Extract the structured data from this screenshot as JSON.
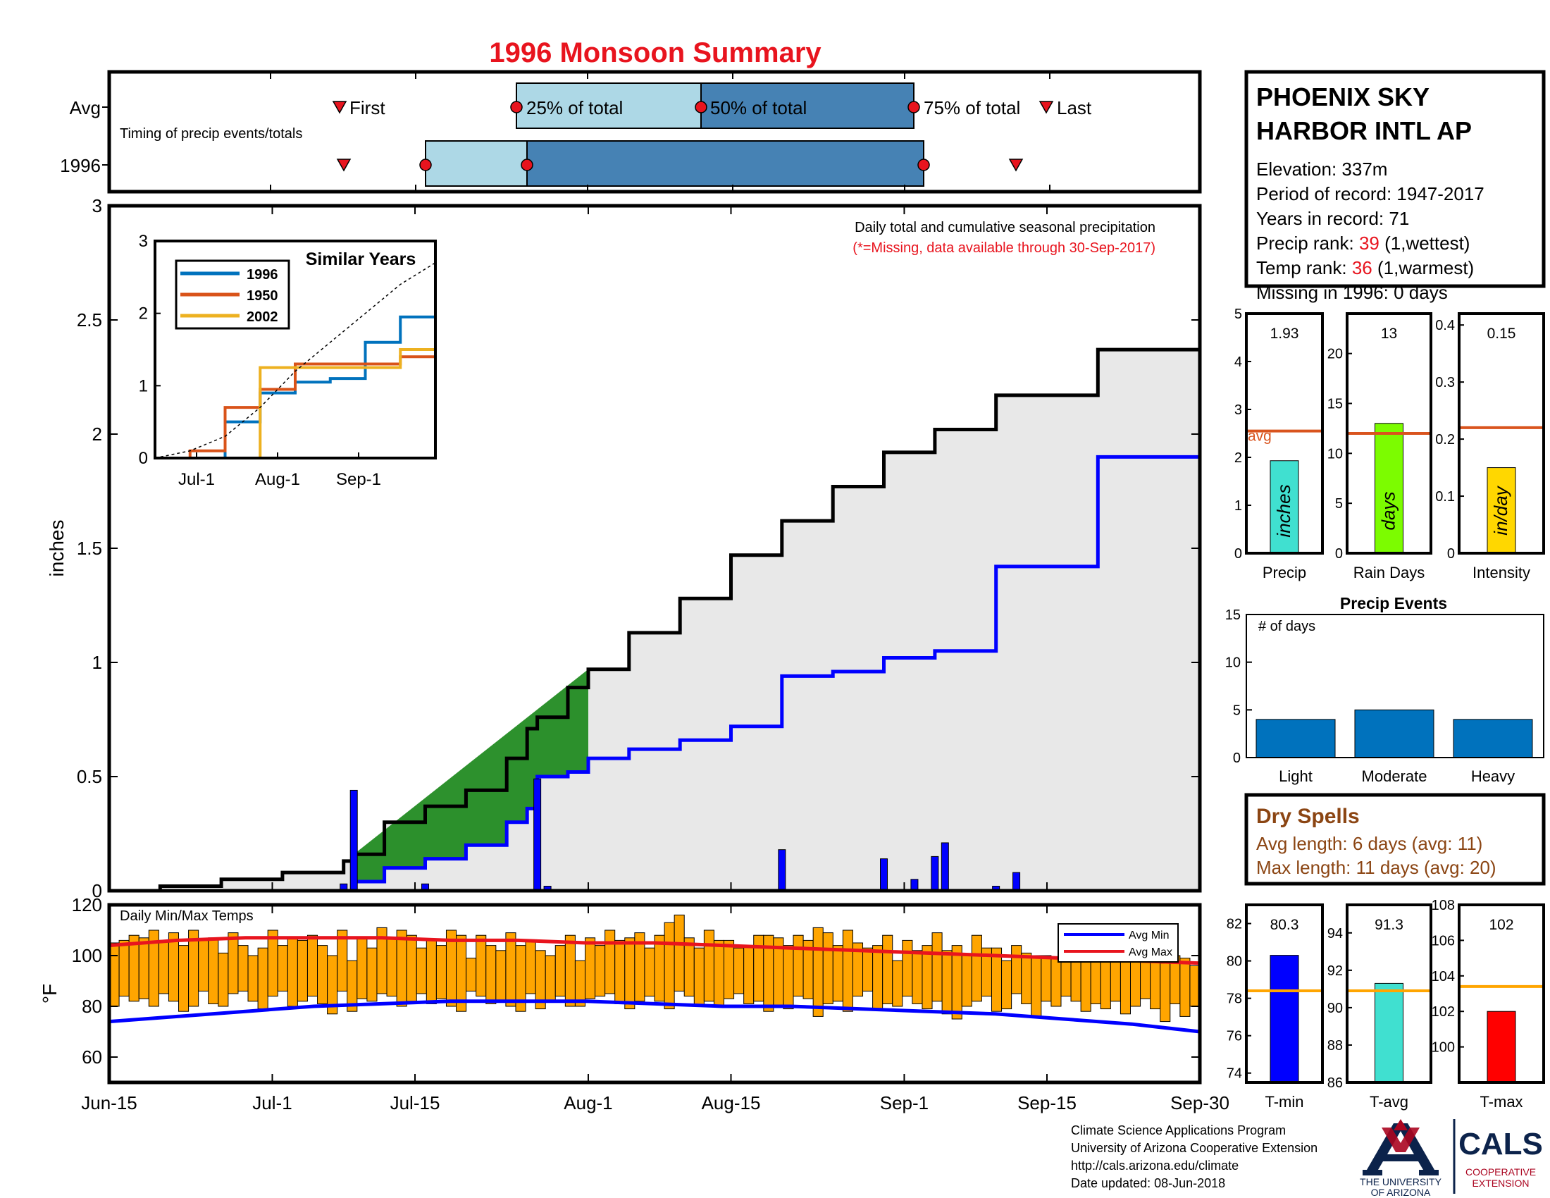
{
  "title": "1996 Monsoon Summary",
  "station": {
    "name_line1": "PHOENIX SKY",
    "name_line2": "HARBOR INTL AP",
    "elevation": "Elevation: 337m",
    "period": "Period of record: 1947-2017",
    "years": "Years in record: 71",
    "precip_rank_label": "Precip rank: ",
    "precip_rank_value": "39",
    "precip_rank_suffix": " (1,wettest)",
    "temp_rank_label": "Temp rank: ",
    "temp_rank_value": "36",
    "temp_rank_suffix": " (1,warmest)",
    "missing": "Missing in 1996: 0 days"
  },
  "timing": {
    "label": "Timing of precip events/totals",
    "row_avg": "Avg",
    "row_year": "1996",
    "first": "First",
    "q25": "25% of total",
    "q50": "50% of total",
    "q75": "75% of total",
    "last": "Last"
  },
  "main_chart": {
    "note": "Daily total and cumulative seasonal precipitation",
    "missing_note": "(*=Missing, data available through 30-Sep-2017)",
    "ylabel": "inches",
    "yticks": [
      "0",
      "0.5",
      "1",
      "1.5",
      "2",
      "2.5",
      "3"
    ],
    "xticks": [
      "Jun-15",
      "Jul-1",
      "Jul-15",
      "Aug-1",
      "Aug-15",
      "Sep-1",
      "Sep-15",
      "Sep-30"
    ]
  },
  "inset": {
    "title": "Similar Years",
    "yticks": [
      "0",
      "1",
      "2",
      "3"
    ],
    "xticks": [
      "Jul-1",
      "Aug-1",
      "Sep-1"
    ],
    "legend": [
      "1996",
      "1950",
      "2002"
    ]
  },
  "summary_bars": {
    "precip_value": "1.93",
    "precip_unit": "inches",
    "precip_label": "Precip",
    "precip_yticks": [
      "0",
      "1",
      "2",
      "3",
      "4",
      "5"
    ],
    "avg_label": "avg",
    "rain_value": "13",
    "rain_unit": "days",
    "rain_label": "Rain Days",
    "rain_yticks": [
      "0",
      "5",
      "10",
      "15",
      "20"
    ],
    "intensity_value": "0.15",
    "intensity_unit": "in/day",
    "intensity_label": "Intensity",
    "intensity_yticks": [
      "0",
      "0.1",
      "0.2",
      "0.3",
      "0.4"
    ]
  },
  "events": {
    "title": "Precip Events",
    "ylabel": "# of days",
    "yticks": [
      "0",
      "5",
      "10",
      "15"
    ],
    "categories": [
      "Light",
      "Moderate",
      "Heavy"
    ]
  },
  "dry_spells": {
    "title": "Dry Spells",
    "avg": "Avg length: 6 days (avg: 11)",
    "max": "Max length: 11 days (avg: 20)"
  },
  "temps": {
    "title": "Daily Min/Max Temps",
    "ylabel": "°F",
    "yticks": [
      "60",
      "80",
      "100",
      "120"
    ],
    "legend_min": "Avg Min",
    "legend_max": "Avg Max"
  },
  "temp_summary": {
    "tmin_value": "80.3",
    "tmin_label": "T-min",
    "tmin_yticks": [
      "74",
      "76",
      "78",
      "80",
      "82"
    ],
    "tavg_value": "91.3",
    "tavg_label": "T-avg",
    "tavg_yticks": [
      "86",
      "88",
      "90",
      "92",
      "94"
    ],
    "tmax_value": "102",
    "tmax_label": "T-max",
    "tmax_yticks": [
      "100",
      "102",
      "104",
      "106",
      "108"
    ]
  },
  "footer": {
    "line1": "Climate Science Applications Program",
    "line2": "University of Arizona Cooperative Extension",
    "line3": "http://cals.arizona.edu/climate",
    "line4": " Date updated: 08-Jun-2018"
  },
  "logos": {
    "ua_line1": "THE UNIVERSITY",
    "ua_line2": "OF ARIZONA",
    "cals": "CALS",
    "cals_sub1": "COOPERATIVE",
    "cals_sub2": "EXTENSION"
  },
  "colors": {
    "title": "#e8141e",
    "deficit": "#b8860b",
    "surplus": "#228b22",
    "normal": "#0000ff",
    "avg_line": "#d9541e",
    "bar_orange": "#ffa500",
    "light_blue": "#add8e6",
    "steel_blue": "#4682b4"
  },
  "chart_data": [
    {
      "type": "area",
      "name": "cumulative precipitation",
      "x": [
        "Jun-15",
        "Jun-20",
        "Jun-26",
        "Jul-2",
        "Jul-8",
        "Jul-9",
        "Jul-12",
        "Jul-16",
        "Jul-20",
        "Jul-24",
        "Jul-26",
        "Jul-27",
        "Jul-30",
        "Aug-1",
        "Aug-5",
        "Aug-10",
        "Aug-15",
        "Aug-20",
        "Aug-25",
        "Aug-30",
        "Sep-4",
        "Sep-10",
        "Sep-20",
        "Sep-30"
      ],
      "series": [
        {
          "name": "1996",
          "values": [
            0,
            0,
            0,
            0,
            0,
            0.04,
            0.1,
            0.14,
            0.2,
            0.3,
            0.36,
            0.5,
            0.52,
            0.58,
            0.62,
            0.66,
            0.72,
            0.94,
            0.96,
            1.02,
            1.05,
            1.42,
            1.9,
            1.93
          ]
        },
        {
          "name": "Avg",
          "values": [
            0,
            0.02,
            0.05,
            0.08,
            0.13,
            0.16,
            0.3,
            0.37,
            0.44,
            0.58,
            0.71,
            0.76,
            0.89,
            0.97,
            1.13,
            1.28,
            1.47,
            1.62,
            1.77,
            1.92,
            2.02,
            2.17,
            2.37,
            2.58
          ]
        }
      ],
      "ylim": [
        0,
        3
      ]
    },
    {
      "type": "bar",
      "name": "daily precipitation",
      "x": [
        "Jul-8",
        "Jul-9",
        "Jul-16",
        "Jul-27",
        "Jul-28",
        "Aug-20",
        "Aug-30",
        "Sep-2",
        "Sep-4",
        "Sep-5",
        "Sep-10",
        "Sep-12"
      ],
      "values": [
        0.03,
        0.44,
        0.03,
        0.49,
        0.02,
        0.18,
        0.14,
        0.05,
        0.15,
        0.21,
        0.02,
        0.08
      ]
    },
    {
      "type": "line",
      "name": "similar years",
      "xticks": [
        "Jul-1",
        "Aug-1",
        "Sep-1"
      ],
      "series": [
        {
          "name": "1996",
          "values": [
            0,
            0,
            0.5,
            0.9,
            1.05,
            1.1,
            1.6,
            1.95,
            1.95
          ]
        },
        {
          "name": "1950",
          "values": [
            0,
            0.1,
            0.7,
            0.95,
            1.3,
            1.3,
            1.3,
            1.4,
            1.7
          ]
        },
        {
          "name": "2002",
          "values": [
            0,
            0,
            0,
            1.25,
            1.25,
            1.25,
            1.25,
            1.5,
            1.7
          ]
        },
        {
          "name": "Avg",
          "values": [
            0,
            0.1,
            0.3,
            0.7,
            1.2,
            1.6,
            2.0,
            2.4,
            2.7
          ]
        }
      ],
      "ylim": [
        0,
        3
      ]
    },
    {
      "type": "bar",
      "name": "seasonal totals",
      "categories": [
        "Precip",
        "Rain Days",
        "Intensity"
      ],
      "values": [
        1.93,
        13,
        0.15
      ],
      "avg": [
        2.55,
        12,
        0.22
      ],
      "ylims": [
        [
          0,
          5
        ],
        [
          0,
          24
        ],
        [
          0,
          0.42
        ]
      ]
    },
    {
      "type": "bar",
      "name": "Precip Events",
      "categories": [
        "Light",
        "Moderate",
        "Heavy"
      ],
      "values": [
        4,
        5,
        4
      ],
      "ylim": [
        0,
        15
      ]
    },
    {
      "type": "bar",
      "name": "Daily Min/Max Temps",
      "min_values": [
        80,
        84,
        82,
        83,
        80,
        85,
        82,
        78,
        80,
        86,
        81,
        80,
        85,
        86,
        82,
        79,
        84,
        86,
        80,
        82,
        84,
        81,
        77,
        86,
        78,
        83,
        82,
        85,
        84,
        80,
        82,
        85,
        81,
        83,
        80,
        78,
        86,
        84,
        81,
        82,
        80,
        78,
        85,
        79,
        82,
        84,
        80,
        80,
        83,
        84,
        85,
        81,
        79,
        82,
        84,
        82,
        79,
        86,
        84,
        80,
        82,
        80,
        83,
        85,
        81,
        82,
        78,
        80,
        79,
        84,
        83,
        76,
        81,
        82,
        78,
        84,
        86,
        79,
        81,
        80,
        84,
        81,
        79,
        82,
        77,
        75,
        80,
        82,
        84,
        78,
        79,
        85,
        81,
        76,
        82,
        80,
        84,
        82,
        78,
        81,
        79,
        82,
        77,
        80,
        83,
        79,
        74,
        81,
        76,
        80
      ],
      "max_values": [
        105,
        106,
        108,
        107,
        110,
        106,
        109,
        104,
        110,
        106,
        107,
        101,
        109,
        104,
        100,
        103,
        110,
        104,
        107,
        106,
        108,
        104,
        100,
        110,
        98,
        107,
        103,
        111,
        107,
        110,
        108,
        103,
        106,
        104,
        110,
        108,
        99,
        108,
        104,
        102,
        109,
        104,
        106,
        102,
        100,
        104,
        108,
        98,
        107,
        104,
        110,
        106,
        107,
        109,
        103,
        108,
        113,
        116,
        107,
        103,
        110,
        106,
        106,
        103,
        104,
        108,
        108,
        107,
        104,
        108,
        106,
        111,
        109,
        104,
        110,
        105,
        103,
        104,
        108,
        98,
        106,
        102,
        104,
        109,
        102,
        104,
        100,
        108,
        103,
        103,
        98,
        104,
        101,
        100,
        100,
        99,
        104,
        103,
        98,
        101,
        105,
        104,
        100,
        98,
        100,
        104,
        97,
        100,
        99,
        96
      ],
      "avg_min": [
        74,
        76,
        78,
        80,
        81,
        82,
        82,
        82,
        81,
        80,
        80,
        79,
        78,
        77,
        75,
        73,
        70
      ],
      "avg_max": [
        104,
        106,
        107,
        107,
        107,
        106,
        106,
        105,
        105,
        104,
        103,
        102,
        101,
        100,
        99,
        98,
        97
      ],
      "ylim": [
        50,
        120
      ]
    },
    {
      "type": "bar",
      "name": "seasonal temperatures",
      "categories": [
        "T-min",
        "T-avg",
        "T-max"
      ],
      "values": [
        80.3,
        91.3,
        102
      ],
      "avg": [
        78.4,
        90.9,
        103.4
      ],
      "ylims": [
        [
          73.5,
          83
        ],
        [
          86,
          95.5
        ],
        [
          98,
          108
        ]
      ]
    }
  ]
}
